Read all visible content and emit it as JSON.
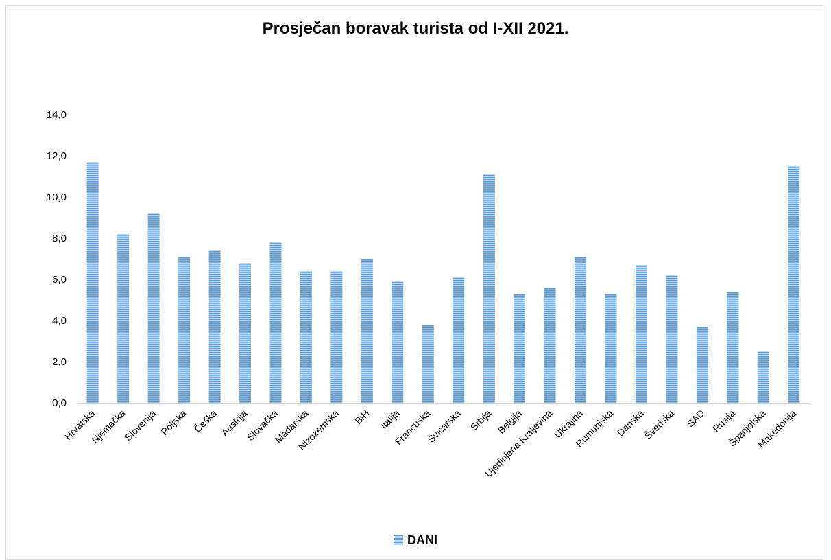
{
  "chart_data": {
    "type": "bar",
    "title": "Prosječan boravak turista od I-XII 2021.",
    "xlabel": "",
    "ylabel": "",
    "ylim": [
      0,
      14
    ],
    "yticks": [
      "0,0",
      "2,0",
      "4,0",
      "6,0",
      "8,0",
      "10,0",
      "12,0",
      "14,0"
    ],
    "grid": false,
    "legend_position": "bottom",
    "bar_color": "#5b9bd5",
    "bar_pattern_color": "#bdd7ee",
    "categories": [
      "Hrvatska",
      "Njemačka",
      "Slovenija",
      "Poljska",
      "Češka",
      "Austrija",
      "Slovačka",
      "Mađarska",
      "Nizozemska",
      "BiH",
      "Italija",
      "Francuska",
      "Švicarska",
      "Srbija",
      "Belgija",
      "Ujedinjena Kraljevina",
      "Ukrajina",
      "Rumunjska",
      "Danska",
      "Švedska",
      "SAD",
      "Rusija",
      "Španjolska",
      "Makedonija"
    ],
    "series": [
      {
        "name": "DANI",
        "values": [
          11.7,
          8.2,
          9.2,
          7.1,
          7.4,
          6.8,
          7.8,
          6.4,
          6.4,
          7.0,
          5.9,
          3.8,
          6.1,
          11.1,
          5.3,
          5.6,
          7.1,
          5.3,
          6.7,
          6.2,
          3.7,
          5.4,
          2.5,
          11.5
        ]
      }
    ]
  }
}
